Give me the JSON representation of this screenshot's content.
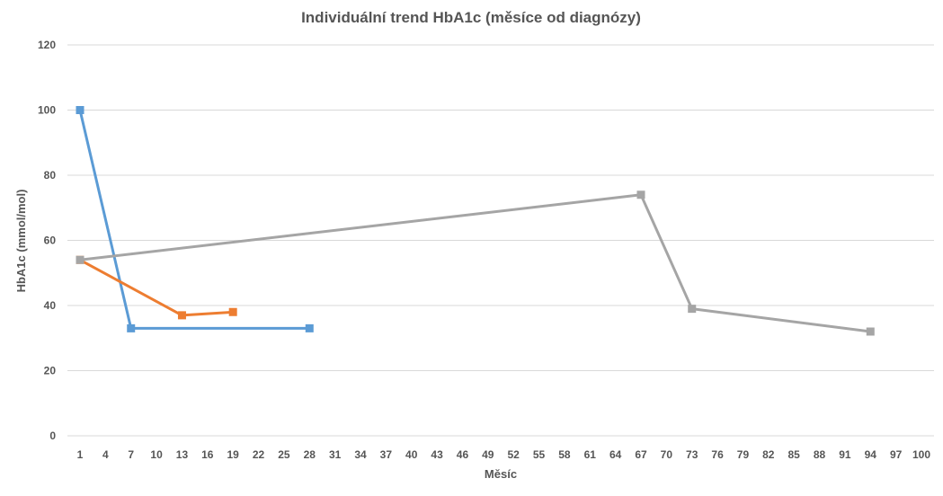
{
  "chart_data": {
    "type": "line",
    "title": "Individuální trend HbA1c (měsíce od diagnózy)",
    "xlabel": "Měsíc",
    "ylabel": "HbA1c (mmol/mol)",
    "xlim": [
      1,
      100
    ],
    "ylim": [
      0,
      120
    ],
    "x_ticks": [
      1,
      4,
      7,
      10,
      13,
      16,
      19,
      22,
      25,
      28,
      31,
      34,
      37,
      40,
      43,
      46,
      49,
      52,
      55,
      58,
      61,
      64,
      67,
      70,
      73,
      76,
      79,
      82,
      85,
      88,
      91,
      94,
      97,
      100
    ],
    "y_ticks": [
      0,
      20,
      40,
      60,
      80,
      100,
      120
    ],
    "grid": "horizontal",
    "legend": "none",
    "series": [
      {
        "color": "#5B9BD5",
        "marker": "square",
        "points": [
          [
            1,
            100
          ],
          [
            7,
            33
          ],
          [
            28,
            33
          ]
        ]
      },
      {
        "color": "#ED7D31",
        "marker": "square",
        "points": [
          [
            1,
            54
          ],
          [
            13,
            37
          ],
          [
            19,
            38
          ]
        ]
      },
      {
        "color": "#A5A5A5",
        "marker": "square",
        "points": [
          [
            1,
            54
          ],
          [
            67,
            74
          ],
          [
            73,
            39
          ],
          [
            94,
            32
          ]
        ]
      }
    ],
    "colors": {
      "grid": "#D9D9D9",
      "axis": "#D9D9D9",
      "text": "#555555"
    }
  }
}
